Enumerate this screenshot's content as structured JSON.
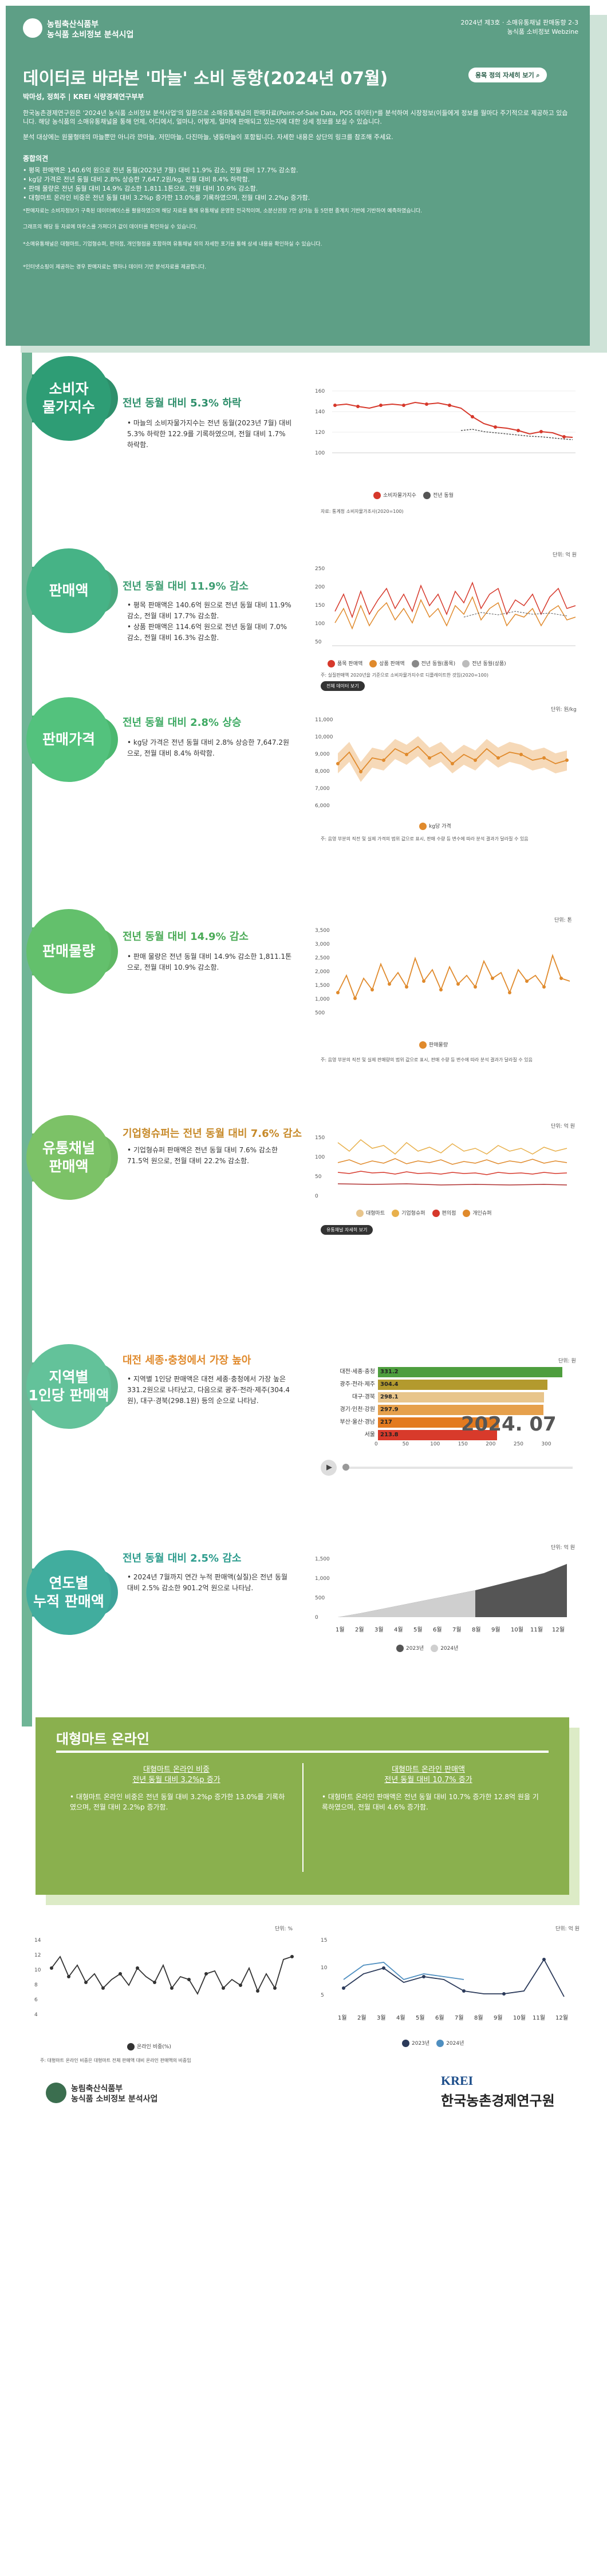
{
  "header": {
    "org_line1": "농림축산식품부",
    "org_line2": "농식품 소비정보 분석시업",
    "issue_line1": "2024년 제3호 · 소매유통채널 판매동향 2-3",
    "issue_line2": "농식품 소비정보 Webzine",
    "title": "데이터로 바라본 '마늘' 소비 동향(2024년 07월)",
    "detail_button": "용목 정의 자세히 보기",
    "authors": "박마성, 정희주 | KREI 식량경제연구부부",
    "intro1": "한국농촌경제연구원은 '2024년 농식품 소비정보 분석사업'의 일환으로 소매유통채널의 판매자료(Point-of-Sale Data, POS 데이터)*를 분석하여 시장정보(이들에게 정보를 월마다 주기적으로 제공하고 있습니다. 해당 농식품의 소매유통채널을 통해 언제, 어디에서, 얼마나, 어떻게, 얼마에 판매되고 있는지에 대한 상세 정보를 보실 수 있습니다.",
    "intro2": "분석 대상에는 원물형태의 마늘뿐만 아니라 깐마늘, 저민마늘, 다진마늘, 냉동마늘이 포함됩니다. 자세한 내용은 상단의 링크를 참조해 주세요.",
    "summary_title": "종합의견",
    "summary": [
      "• 평목 판매액은 140.6억 원으로 전년 동월(2023년 7월) 대비 11.9% 감소, 전월 대비 17.7% 감소함.",
      "• kg당 가격은 전년 동월 대비 2.8% 상승한 7,647.2원/kg, 전월 대비 8.4% 하락함.",
      "• 판매 물량은 전년 동월 대비 14.9% 감소한 1,811.1톤으로, 전월 대비 10.9% 감소함.",
      "• 대형마트 온라인 비중은 전년 동월 대비 3.2%p 증가한 13.0%를 기록하였으며, 전월 대비 2.2%p 증가함."
    ],
    "note1": "*판매자료는 소비자정보가 구축된 데이터베이스를 활용하였으며 해당 자료를 통해 유통채널 운영한 전국적이며, 소분산권장 7만 상가능 등 5만편 종계치 기반에 기반하여 예측하였습니다.",
    "note2": "그래프의 해당 등 자료에 마우스를 가져다가 값이 데이터를 확인하실 수 있습니다.",
    "note3": "*소매유통채널은 대형마트, 기업형슈퍼, 편의점, 개인형점을 포함하며 유통채널 외의 자세한 포기를 통해 상세 내용을 확인하실 수 있습니다.",
    "note4": "*인터넷쇼핑이 제공하는 경우 판매자료는 행하나 데이터 기반 분석자료를 제공합니다."
  },
  "sections": {
    "s1": {
      "name_l1": "소비자",
      "name_l2": "물가지수",
      "headline": "전년 동월 대비 5.3% 하락",
      "body": "• 마늘의 소비자물가지수는 전년 동월(2023년 7월) 대비 5.3% 하락한 122.9를 기록하였으며, 전월 대비 1.7% 하락함."
    },
    "s2": {
      "name_l1": "판매액",
      "name_l2": "",
      "headline": "전년 동월 대비 11.9% 감소",
      "body": "• 평목 판매액은 140.6억 원으로 전년 동월 대비 11.9% 감소, 전월 대비 17.7% 감소함.\n• 상품 판매액은 114.6억 원으로 전년 동월 대비 7.0% 감소, 전월 대비 16.3% 감소함."
    },
    "s3": {
      "name_l1": "판매가격",
      "name_l2": "",
      "headline": "전년 동월 대비 2.8% 상승",
      "body": "• kg당 가격은 전년 동월 대비 2.8% 상승한 7,647.2원으로, 전월 대비 8.4% 하락함."
    },
    "s4": {
      "name_l1": "판매물량",
      "name_l2": "",
      "headline": "전년 동월 대비 14.9% 감소",
      "body": "• 판매 물량은 전년 동월 대비 14.9% 감소한 1,811.1톤으로, 전월 대비 10.9% 감소함."
    },
    "s5": {
      "name_l1": "유통채널",
      "name_l2": "판매액",
      "headline": "기업형슈퍼는 전년 동월 대비 7.6% 감소",
      "body": "• 기업형슈퍼 판매액은 전년 동월 대비 7.6% 감소한 71.5억 원으로, 전월 대비 22.2% 감소함."
    },
    "s6": {
      "name_l1": "지역별",
      "name_l2": "1인당 판매액",
      "headline": "대전 세종·충청에서 가장 높아",
      "body": "• 지역별 1인당 판매액은 대전 세종·충청에서 가장 높은 331.2원으로 나타났고, 다음으로 광주·전라·제주(304.4원), 대구·경북(298.1원) 등의 순으로 나타남."
    },
    "s7": {
      "name_l1": "연도별",
      "name_l2": "누적 판매액",
      "headline": "전년 동월 대비 2.5% 감소",
      "body": "• 2024년 7월까지 연간 누적 판매액(실질)은 전년 동월 대비 2.5% 감소한 901.2억 원으로 나타남."
    }
  },
  "chart1": {
    "legend": [
      "소비자물가지수",
      "전년 동월"
    ],
    "note": "자료: 통계청 소비자물가조사(2020=100)",
    "ylabels": [
      "160",
      "140",
      "120",
      "100"
    ]
  },
  "chart2": {
    "unit": "단위: 억 원",
    "legend": [
      "품목 판매액",
      "상품 판매액",
      "전년 동월(품목)",
      "전년 동월(상품)"
    ],
    "note": "주: 실질판매액 2020년을 기준으로 소비자물가지수로 디플레이트한 것임(2020=100)",
    "tag": "전체 데이터 보기",
    "ylabels": [
      "250",
      "200",
      "150",
      "100",
      "50"
    ]
  },
  "chart3": {
    "unit": "단위: 원/kg",
    "legend": [
      "kg당 가격"
    ],
    "note": "주: 음영 부분의 직전 및 실제 가격의 범위 값으로 표시, 판매 수량 등 변수에 따라 분석 결과가 달라질 수 있음",
    "ylabels": [
      "11,000",
      "10,000",
      "9,000",
      "8,000",
      "7,000",
      "6,000"
    ]
  },
  "chart4": {
    "unit": "단위: 톤",
    "legend": [
      "판매물량"
    ],
    "note": "주: 음영 부분의 직전 및 실제 판매량의 범위 값으로 표시, 판매 수량 등 변수에 따라 분석 결과가 달라질 수 있음",
    "ylabels": [
      "3,500",
      "3,000",
      "2,500",
      "2,000",
      "1,500",
      "1,000",
      "500"
    ]
  },
  "chart5": {
    "unit": "단위: 억 원",
    "legend": [
      "대형마트",
      "기업형슈퍼",
      "편의점",
      "개인슈퍼"
    ],
    "tag": "유통채널 자세히 보기",
    "ylabels": [
      "150",
      "100",
      "50",
      "0"
    ]
  },
  "chart6": {
    "unit": "단위: 원",
    "regions": [
      "대전·세종·충청",
      "광주·전라·제주",
      "대구·경북",
      "경기·인천·강원",
      "부산·울산·경남",
      "서울"
    ],
    "values": [
      331.2,
      304.4,
      298.1,
      297.9,
      217,
      213.8
    ],
    "value_labels": [
      "331.2",
      "304.4",
      "298.1",
      "297.9",
      "217",
      "213.8"
    ],
    "colors": [
      "#4e9e3e",
      "#b39a2e",
      "#e8c58c",
      "#e6a04c",
      "#e37a1f",
      "#d83a2b"
    ],
    "year_month": "2024. 07",
    "xticks": [
      "0",
      "50",
      "100",
      "150",
      "200",
      "250",
      "300"
    ]
  },
  "chart7": {
    "unit": "단위: 억 원",
    "months": [
      "1월",
      "2월",
      "3월",
      "4월",
      "5월",
      "6월",
      "7월",
      "8월",
      "9월",
      "10월",
      "11월",
      "12월"
    ],
    "legend": [
      "2023년",
      "2024년"
    ],
    "ylabels": [
      "1,500",
      "1,000",
      "500",
      "0"
    ]
  },
  "online": {
    "title": "대형마트 온라인",
    "left_head1": "대형마트 온라인 비중",
    "left_head2": "전년 동월 대비 3.2%p 증가",
    "left_body": "• 대형마트 온라인 비중은 전년 동월 대비 3.2%p 증가한 13.0%를 기록하였으며, 전월 대비 2.2%p 증가함.",
    "right_head1": "대형마트 온라인 판매액",
    "right_head2": "전년 동월 대비 10.7% 증가",
    "right_body": "• 대형마트 온라인 판매액은 전년 동월 대비 10.7% 증가한 12.8억 원을 기록하였으며, 전월 대비 4.6% 증가함."
  },
  "chart8": {
    "unit": "단위: %",
    "legend": [
      "온라인 비중(%)"
    ],
    "note": "주: 대형마트 온라인 비중은 대형마트 전체 판매액 대비 온라인 판매액의 비중임",
    "ylabels": [
      "14",
      "12",
      "10",
      "8",
      "6",
      "4"
    ]
  },
  "chart9": {
    "unit": "단위: 억 원",
    "months": [
      "1월",
      "2월",
      "3월",
      "4월",
      "5월",
      "6월",
      "7월",
      "8월",
      "9월",
      "10월",
      "11월",
      "12월"
    ],
    "legend": [
      "2023년",
      "2024년"
    ],
    "ylabels": [
      "15",
      "10",
      "5"
    ]
  },
  "footer": {
    "org_line1": "농림축산식품부",
    "org_line2": "농식품 소비정보 분석사업",
    "krei_logo": "KREI",
    "krei_name": "한국농촌경제연구원"
  }
}
